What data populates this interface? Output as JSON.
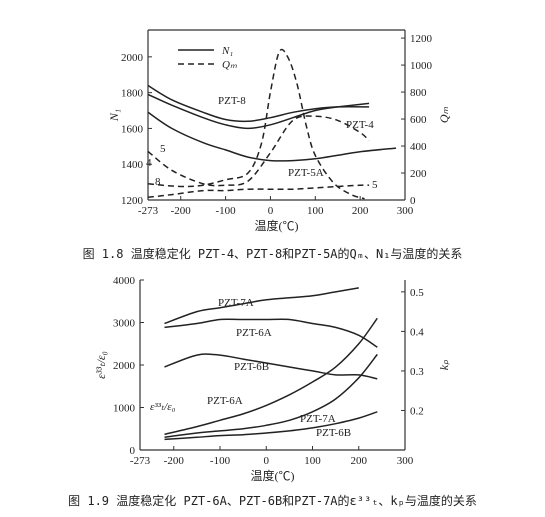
{
  "figures": [
    {
      "caption": "图 1.8 温度稳定化 PZT-4、PZT-8和PZT-5A的Qₘ、N₁与温度的关系"
    },
    {
      "caption": "图 1.9 温度稳定化 PZT-6A、PZT-6B和PZT-7A的ε³³ₜ、kₚ与温度的关系"
    }
  ],
  "chart_data": [
    {
      "type": "line",
      "x_ticks": [
        "-273",
        "-200",
        "-100",
        "0",
        "100",
        "200",
        "300"
      ],
      "y_ticks": [
        "1200",
        "1400",
        "1600",
        "1800",
        "2000"
      ],
      "y2_ticks": [
        "0",
        "200",
        "400",
        "600",
        "800",
        "1000",
        "1200"
      ],
      "xlabel": "温度(℃)",
      "ylabel": "N₁",
      "y2label": "Qₘ",
      "xlim": [
        -273,
        300
      ],
      "ylim": [
        1200,
        2150
      ],
      "y2lim": [
        0,
        1260
      ],
      "legend": {
        "placement": "top-left",
        "entries": [
          {
            "label": "N₁",
            "style": "solid"
          },
          {
            "label": "Qₘ",
            "style": "dashed"
          }
        ]
      },
      "series": [
        {
          "name": "PZT-8",
          "axis": "left",
          "style": "solid",
          "x": [
            -273,
            -220,
            -150,
            -100,
            -50,
            0,
            50,
            100,
            150,
            220
          ],
          "y": [
            1840,
            1760,
            1690,
            1650,
            1640,
            1660,
            1690,
            1710,
            1720,
            1720
          ]
        },
        {
          "name": "PZT-4",
          "axis": "left",
          "style": "solid",
          "x": [
            -273,
            -220,
            -150,
            -100,
            -50,
            0,
            50,
            100,
            150,
            220
          ],
          "y": [
            1790,
            1730,
            1660,
            1620,
            1600,
            1620,
            1660,
            1700,
            1720,
            1740
          ]
        },
        {
          "name": "PZT-5A",
          "axis": "left",
          "style": "solid",
          "x": [
            -273,
            -220,
            -150,
            -100,
            -50,
            0,
            50,
            100,
            150,
            200,
            280
          ],
          "y": [
            1690,
            1600,
            1520,
            1480,
            1440,
            1420,
            1420,
            1430,
            1450,
            1470,
            1490
          ]
        },
        {
          "name": "PZT-8",
          "axis": "right",
          "style": "dashed",
          "x": [
            -273,
            -200,
            -150,
            -100,
            -50,
            -20,
            0,
            20,
            40,
            60,
            80,
            100,
            140,
            180,
            210
          ],
          "y": [
            120,
            100,
            110,
            150,
            200,
            420,
            800,
            1100,
            1050,
            850,
            550,
            330,
            130,
            40,
            10
          ]
        },
        {
          "name": "PZT-4",
          "axis": "right",
          "style": "dashed",
          "x": [
            -273,
            -220,
            -150,
            -100,
            -50,
            0,
            50,
            100,
            150,
            200,
            220
          ],
          "y": [
            360,
            220,
            120,
            110,
            140,
            350,
            590,
            620,
            590,
            500,
            440
          ]
        },
        {
          "name": "PZT-5A",
          "axis": "right",
          "style": "dashed",
          "x": [
            -273,
            -220,
            -150,
            -100,
            -50,
            0,
            50,
            100,
            150,
            200,
            220
          ],
          "y": [
            20,
            40,
            70,
            70,
            80,
            80,
            80,
            90,
            100,
            110,
            110
          ]
        }
      ],
      "annotations": [
        "PZT-8",
        "PZT-4",
        "PZT-5A",
        "5",
        "4",
        "8",
        "5"
      ]
    },
    {
      "type": "line",
      "x_ticks": [
        "-273",
        "-200",
        "-100",
        "0",
        "100",
        "200",
        "300"
      ],
      "y_ticks": [
        "0",
        "1000",
        "2000",
        "3000",
        "4000"
      ],
      "y2_ticks": [
        "0.2",
        "0.3",
        "0.4",
        "0.5"
      ],
      "xlabel": "温度(℃)",
      "ylabel": "ε³³ₜ/ε₀",
      "y2label": "kₚ",
      "xlim": [
        -273,
        300
      ],
      "ylim": [
        0,
        4000
      ],
      "y2lim": [
        0.1,
        0.53
      ],
      "series": [
        {
          "name": "PZT-7A",
          "axis": "right",
          "style": "solid",
          "x": [
            -220,
            -150,
            -100,
            -50,
            0,
            50,
            100,
            150,
            200
          ],
          "y": [
            0.42,
            0.45,
            0.46,
            0.47,
            0.48,
            0.485,
            0.49,
            0.5,
            0.51
          ]
        },
        {
          "name": "PZT-6A",
          "axis": "right",
          "style": "solid",
          "x": [
            -220,
            -150,
            -100,
            -50,
            0,
            50,
            100,
            150,
            200,
            240
          ],
          "y": [
            0.41,
            0.42,
            0.43,
            0.43,
            0.43,
            0.43,
            0.42,
            0.41,
            0.39,
            0.36
          ]
        },
        {
          "name": "PZT-6B",
          "axis": "right",
          "style": "solid",
          "x": [
            -220,
            -150,
            -100,
            -50,
            0,
            50,
            100,
            150,
            200,
            240
          ],
          "y": [
            0.31,
            0.34,
            0.34,
            0.33,
            0.32,
            0.31,
            0.3,
            0.29,
            0.29,
            0.28
          ]
        },
        {
          "name": "PZT-6A",
          "axis": "left",
          "style": "solid",
          "x": [
            -220,
            -150,
            -100,
            -50,
            0,
            50,
            100,
            150,
            200,
            240
          ],
          "y": [
            370,
            550,
            700,
            850,
            1050,
            1300,
            1600,
            1950,
            2500,
            3100
          ]
        },
        {
          "name": "PZT-7A",
          "axis": "left",
          "style": "solid",
          "x": [
            -220,
            -150,
            -100,
            -50,
            0,
            50,
            100,
            150,
            200,
            240
          ],
          "y": [
            300,
            400,
            450,
            500,
            580,
            700,
            900,
            1200,
            1700,
            2250
          ]
        },
        {
          "name": "PZT-6B",
          "axis": "left",
          "style": "solid",
          "x": [
            -220,
            -150,
            -100,
            -50,
            0,
            50,
            100,
            150,
            200,
            240
          ],
          "y": [
            250,
            300,
            340,
            360,
            400,
            450,
            520,
            620,
            750,
            900
          ]
        }
      ],
      "annotations": [
        "PZT-7A",
        "PZT-6A",
        "PZT-6B",
        "PZT-6A",
        "PZT-7A",
        "PZT-6B",
        "ε³³ₜ/ε₀"
      ]
    }
  ]
}
